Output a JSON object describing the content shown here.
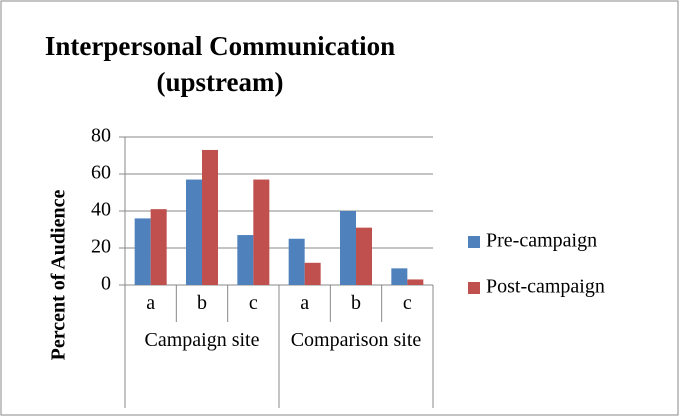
{
  "chart_data": {
    "type": "bar",
    "title": "Interpersonal Communication (upstream)",
    "ylabel": "Percent of Audience",
    "groups": [
      {
        "name": "Campaign site",
        "categories": [
          "a",
          "b",
          "c"
        ]
      },
      {
        "name": "Comparison site",
        "categories": [
          "a",
          "b",
          "c"
        ]
      }
    ],
    "series": [
      {
        "name": "Pre-campaign",
        "color": "#4f81bd",
        "values": [
          36,
          57,
          27,
          25,
          40,
          9
        ]
      },
      {
        "name": "Post-campaign",
        "color": "#c0504d",
        "values": [
          41,
          73,
          57,
          12,
          31,
          3
        ]
      }
    ],
    "ylim": [
      0,
      80
    ],
    "yticks": [
      0,
      20,
      40,
      60,
      80
    ],
    "grid": true,
    "legend": "right"
  }
}
